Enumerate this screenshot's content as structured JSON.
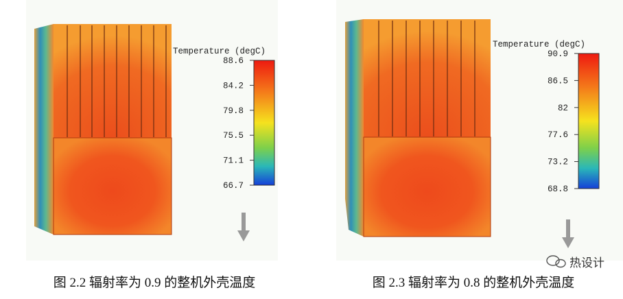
{
  "panels": [
    {
      "legend_title": "Temperature (degC)",
      "ticks": [
        "88.6",
        "84.2",
        "79.8",
        "75.5",
        "71.1",
        "66.7"
      ],
      "caption": "图 2.2  辐射率为 0.9 的整机外壳温度"
    },
    {
      "legend_title": "Temperature (degC)",
      "ticks": [
        "90.9",
        "86.5",
        "82",
        "77.6",
        "73.2",
        "68.8"
      ],
      "caption": "图 2.3  辐射率为 0.8 的整机外壳温度"
    }
  ],
  "watermark": "热设计"
}
